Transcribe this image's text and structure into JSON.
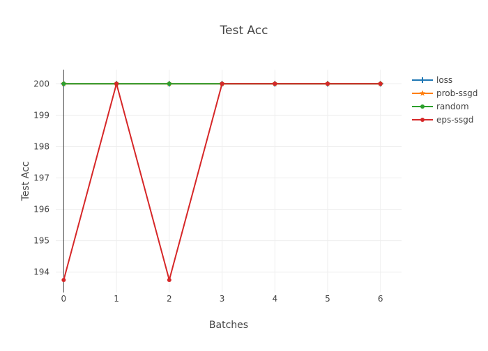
{
  "chart_data": {
    "type": "line",
    "title": "Test Acc",
    "xlabel": "Batches",
    "ylabel": "Test Acc",
    "x": [
      0,
      1,
      2,
      3,
      4,
      5,
      6
    ],
    "xlim": [
      -0.15,
      6.4
    ],
    "ylim": [
      193.35,
      200.45
    ],
    "yticks": [
      194,
      195,
      196,
      197,
      198,
      199,
      200
    ],
    "xticks": [
      0,
      1,
      2,
      3,
      4,
      5,
      6
    ],
    "grid": true,
    "legend_position": "top-right",
    "series": [
      {
        "name": "loss",
        "color": "#1f77b4",
        "marker": "cross",
        "values": [
          200,
          200,
          200,
          200,
          200,
          200,
          200
        ]
      },
      {
        "name": "prob-ssgd",
        "color": "#ff7f0e",
        "marker": "star",
        "values": [
          200,
          200,
          200,
          200,
          200,
          200,
          200
        ]
      },
      {
        "name": "random",
        "color": "#2ca02c",
        "marker": "circle",
        "values": [
          200,
          200,
          200,
          200,
          200,
          200,
          200
        ]
      },
      {
        "name": "eps-ssgd",
        "color": "#d62728",
        "marker": "circle",
        "values": [
          193.75,
          200,
          193.75,
          200,
          200,
          200,
          200
        ]
      }
    ]
  }
}
